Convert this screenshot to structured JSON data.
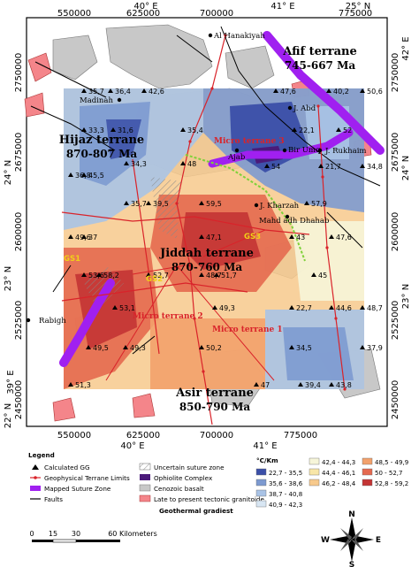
{
  "axes": {
    "top_x": [
      "550000",
      "625000",
      "700000",
      "775000"
    ],
    "top_deg": [
      "40° E",
      "41° E",
      "25° N"
    ],
    "bottom_x": [
      "550000",
      "625000",
      "700000",
      "775000"
    ],
    "bottom_deg": [
      "39° E",
      "40° E",
      "41° E"
    ],
    "left_y": [
      "2750000",
      "2675000",
      "2600000",
      "2525000",
      "2450000"
    ],
    "left_deg": [
      "24° N",
      "23° N",
      "22° N"
    ],
    "right_y": [
      "2750000",
      "2675000",
      "2600000",
      "2525000",
      "2450000"
    ],
    "right_deg": [
      "42° E",
      "24° N",
      "23° N"
    ]
  },
  "terranes": {
    "afif": {
      "name": "Afif terrane",
      "age": "745-667 Ma"
    },
    "hijaz": {
      "name": "Hijaz terrane",
      "age": "870-807 Ma"
    },
    "jiddah": {
      "name": "Jiddah terrane",
      "age": "870-760 Ma"
    },
    "asir": {
      "name": "Asir terrane",
      "age": "850-790 Ma"
    }
  },
  "micro_terranes": [
    "Micro terrane 3",
    "Micro terrane 2",
    "Micro terrane 1"
  ],
  "places": [
    "Al Hanakiyah",
    "Madinah",
    "J. Abd",
    "Bir Umq",
    "Ajab",
    "J. Rukhaim",
    "J. Kharzah",
    "Mahd adh Dhahab",
    "Rabigh"
  ],
  "gs_labels": [
    "GS1",
    "GS2",
    "GS3"
  ],
  "gg_values": [
    {
      "v": "35,7"
    },
    {
      "v": "36,4"
    },
    {
      "v": "42,6"
    },
    {
      "v": "47,6"
    },
    {
      "v": "40,2"
    },
    {
      "v": "50,6"
    },
    {
      "v": "33,3"
    },
    {
      "v": "31,6"
    },
    {
      "v": "35,4"
    },
    {
      "v": "22,1"
    },
    {
      "v": "52"
    },
    {
      "v": "36,8"
    },
    {
      "v": "45,5"
    },
    {
      "v": "34,3"
    },
    {
      "v": "48"
    },
    {
      "v": "54"
    },
    {
      "v": "21,7"
    },
    {
      "v": "34,8"
    },
    {
      "v": "35,7"
    },
    {
      "v": "39,5"
    },
    {
      "v": "59,5"
    },
    {
      "v": "57,9"
    },
    {
      "v": "49,6"
    },
    {
      "v": "37"
    },
    {
      "v": "47,1"
    },
    {
      "v": "43"
    },
    {
      "v": "47,6"
    },
    {
      "v": "53,6"
    },
    {
      "v": "58,2"
    },
    {
      "v": "52,7"
    },
    {
      "v": "48,7"
    },
    {
      "v": "51,7"
    },
    {
      "v": "45"
    },
    {
      "v": "53,1"
    },
    {
      "v": "49,3"
    },
    {
      "v": "44,6"
    },
    {
      "v": "48,7"
    },
    {
      "v": "49,5"
    },
    {
      "v": "49,3"
    },
    {
      "v": "50,2"
    },
    {
      "v": "34,5"
    },
    {
      "v": "37,9"
    },
    {
      "v": "51,3"
    },
    {
      "v": "47"
    },
    {
      "v": "39,4"
    },
    {
      "v": "43,8"
    },
    {
      "v": "22,7"
    }
  ],
  "legend": {
    "title": "Legend",
    "items": [
      "Calculated GG",
      "Geophysical Terrane Limits",
      "Mapped Suture Zone",
      "Faults",
      "Uncertain suture zone",
      "Ophiolite Complex",
      "Cenozoic basalt",
      "Late to present tectonic granitoide"
    ],
    "gradient_title": "Geothermal gradiest",
    "unit": "°C/Km",
    "classes": [
      {
        "range": "22,7 - 35,5",
        "color": "#3b4fa8"
      },
      {
        "range": "35,6 - 38,6",
        "color": "#7d9ad0"
      },
      {
        "range": "38,7 - 40,8",
        "color": "#a9c3e6"
      },
      {
        "range": "40,9 - 42,3",
        "color": "#d8e6f3"
      },
      {
        "range": "42,4 - 44,3",
        "color": "#f6f5d9"
      },
      {
        "range": "44,4 - 46,1",
        "color": "#f8e6a8"
      },
      {
        "range": "46,2 - 48,4",
        "color": "#f7c98c"
      },
      {
        "range": "48,5 - 49,9",
        "color": "#f2a16c"
      },
      {
        "range": "50 - 52,7",
        "color": "#e4694f"
      },
      {
        "range": "52,8 - 59,2",
        "color": "#c33434"
      }
    ]
  },
  "scale": {
    "ticks": [
      "0",
      "15",
      "30",
      "60 Kilometers"
    ]
  },
  "compass": {
    "n": "N",
    "s": "S",
    "e": "E",
    "w": "W"
  },
  "colors": {
    "suture": "#a020f0",
    "terrane_limit": "#d9232a",
    "gs_line": "#7fd13a",
    "basalt": "#c8c8c8",
    "granite": "#f4858a",
    "ophiolite": "#4b1a7a"
  }
}
